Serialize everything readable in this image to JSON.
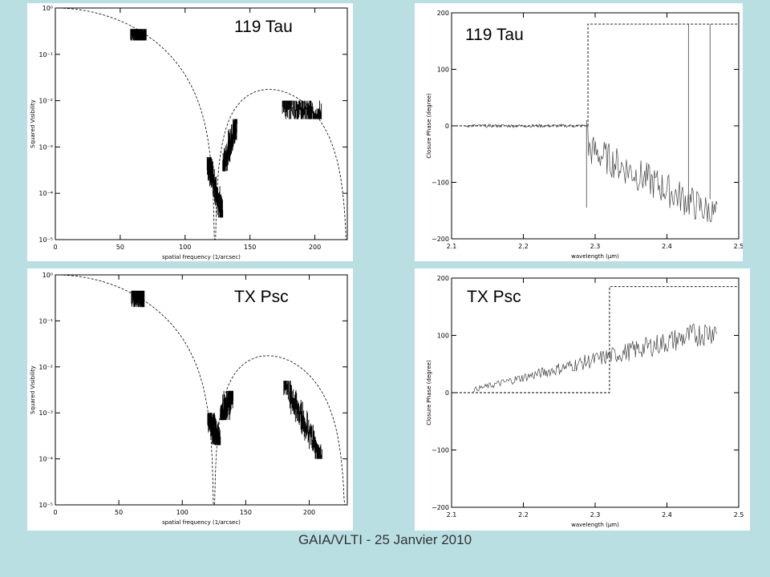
{
  "footer": "GAIA/VLTI - 25 Janvier 2010",
  "chart_data": [
    {
      "type": "scatter",
      "title": "119 Tau",
      "xlabel": "spatial frequency (1/arcsec)",
      "ylabel": "Squared Visibility",
      "xlim": [
        0,
        225
      ],
      "ylim": [
        1e-05,
        1
      ],
      "yscale": "log",
      "xticks": [
        0,
        50,
        100,
        150,
        200
      ],
      "yticks": [
        1e-05,
        0.0001,
        0.001,
        0.01,
        0.1,
        1
      ],
      "ytick_labels": [
        "10⁻⁵",
        "10⁻⁴",
        "10⁻³",
        "10⁻²",
        "10⁻¹",
        "10⁰"
      ],
      "model": {
        "name": "",
        "style": "dashed",
        "first_null": 123
      },
      "series": [
        {
          "x_range": [
            58,
            70
          ],
          "values_range": [
            0.2,
            0.35
          ]
        },
        {
          "x_range": [
            117,
            129
          ],
          "values_range": [
            3e-05,
            0.0006
          ]
        },
        {
          "x_range": [
            129,
            140
          ],
          "values_range": [
            0.0003,
            0.004
          ]
        },
        {
          "x_range": [
            175,
            205
          ],
          "values_range": [
            0.004,
            0.01
          ]
        }
      ]
    },
    {
      "type": "line",
      "title": "119 Tau",
      "xlabel": "wavelength (μm)",
      "ylabel": "Closure Phase (degree)",
      "xlim": [
        2.1,
        2.5
      ],
      "ylim": [
        -200,
        200
      ],
      "xticks": [
        2.1,
        2.2,
        2.3,
        2.4,
        2.5
      ],
      "yticks": [
        -200,
        -100,
        0,
        100,
        200
      ],
      "model": {
        "style": "dashed",
        "x_jump": 2.29,
        "before": 0,
        "after": 180
      },
      "series": [
        {
          "x_range": [
            2.12,
            2.47
          ],
          "start": 0,
          "end": -160
        }
      ]
    },
    {
      "type": "scatter",
      "title": "TX Psc",
      "xlabel": "spatial frequency (1/arcsec)",
      "ylabel": "Squared Visibility",
      "xlim": [
        0,
        230
      ],
      "ylim": [
        1e-05,
        1
      ],
      "yscale": "log",
      "xticks": [
        0,
        50,
        100,
        150,
        200
      ],
      "yticks": [
        1e-05,
        0.0001,
        0.001,
        0.01,
        0.1,
        1
      ],
      "ytick_labels": [
        "10⁻⁵",
        "10⁻⁴",
        "10⁻³",
        "10⁻²",
        "10⁻¹",
        "10⁰"
      ],
      "model": {
        "name": "",
        "style": "dashed",
        "first_null": 125
      },
      "series": [
        {
          "x_range": [
            60,
            70
          ],
          "values_range": [
            0.2,
            0.45
          ]
        },
        {
          "x_range": [
            120,
            130
          ],
          "values_range": [
            0.0002,
            0.001
          ]
        },
        {
          "x_range": [
            130,
            140
          ],
          "values_range": [
            0.0007,
            0.003
          ]
        },
        {
          "x_range": [
            180,
            210
          ],
          "values_range": [
            0.0001,
            0.005
          ]
        }
      ]
    },
    {
      "type": "line",
      "title": "TX Psc",
      "xlabel": "wavelength (μm)",
      "ylabel": "Closure Phase (degree)",
      "xlim": [
        2.1,
        2.5
      ],
      "ylim": [
        -200,
        200
      ],
      "xticks": [
        2.1,
        2.2,
        2.3,
        2.4,
        2.5
      ],
      "yticks": [
        -200,
        -100,
        0,
        100,
        200
      ],
      "model": {
        "style": "dashed",
        "x_jump": 2.32,
        "before": 0,
        "after": 185
      },
      "series": [
        {
          "x_range": [
            2.13,
            2.47
          ],
          "start": 5,
          "end": 110
        }
      ]
    }
  ]
}
